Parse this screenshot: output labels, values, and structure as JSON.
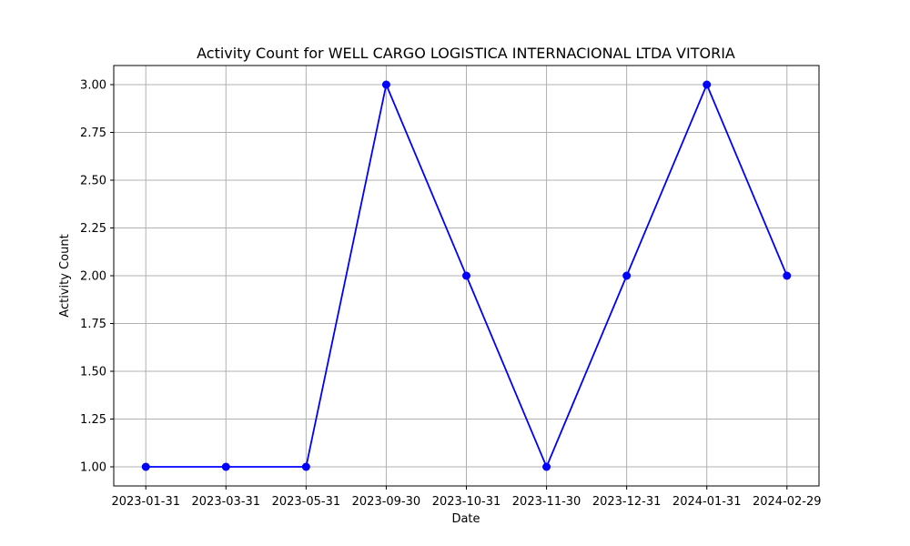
{
  "chart_data": {
    "type": "line",
    "title": "Activity Count for WELL CARGO LOGISTICA INTERNACIONAL LTDA VITORIA",
    "xlabel": "Date",
    "ylabel": "Activity Count",
    "categories": [
      "2023-01-31",
      "2023-03-31",
      "2023-05-31",
      "2023-09-30",
      "2023-10-31",
      "2023-11-30",
      "2023-12-31",
      "2024-01-31",
      "2024-02-29"
    ],
    "series": [
      {
        "values": [
          1,
          1,
          1,
          3,
          2,
          1,
          2,
          3,
          2
        ]
      }
    ],
    "ylim": [
      0.9,
      3.1
    ],
    "yticks": [
      1.0,
      1.25,
      1.5,
      1.75,
      2.0,
      2.25,
      2.5,
      2.75,
      3.0
    ],
    "ytick_labels": [
      "1.00",
      "1.25",
      "1.50",
      "1.75",
      "2.00",
      "2.25",
      "2.50",
      "2.75",
      "3.00"
    ],
    "grid": true,
    "line_color": "#0000ff",
    "marker": "circle"
  }
}
